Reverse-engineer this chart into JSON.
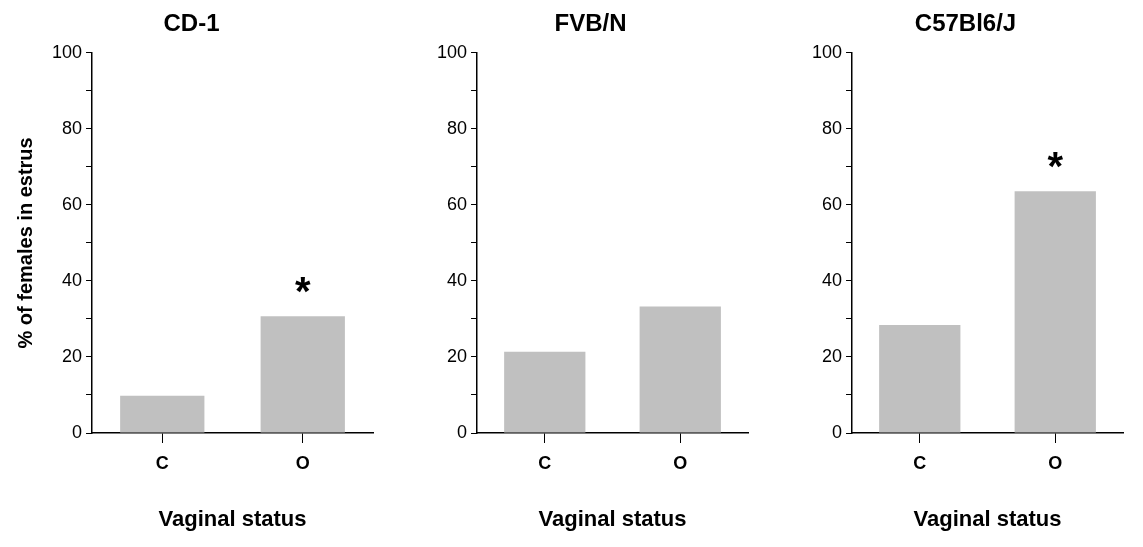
{
  "chart_data": [
    {
      "type": "bar",
      "title": "CD-1",
      "xlabel": "Vaginal status",
      "ylabel": "% of females in estrus",
      "categories": [
        "C",
        "O"
      ],
      "values": [
        9.8,
        30.7
      ],
      "color": "#c0c0c0",
      "ylim": [
        0,
        100
      ],
      "yticks": [
        0,
        {
          "value": 10,
          "label": null
        },
        20,
        {
          "value": 30,
          "label": null
        },
        40,
        {
          "value": 50,
          "label": null
        },
        60,
        {
          "value": 70,
          "label": null
        },
        80,
        {
          "value": 90,
          "label": null
        },
        100
      ],
      "annotations": [
        "*"
      ]
    },
    {
      "type": "bar",
      "title": "FVB/N",
      "xlabel": "Vaginal status",
      "categories": [
        "C",
        "O"
      ],
      "values": [
        21.4,
        33.3
      ],
      "color": "#c0c0c0",
      "ylim": [
        0,
        100
      ],
      "yticks": [
        0,
        {
          "value": 10,
          "label": null
        },
        20,
        {
          "value": 30,
          "label": null
        },
        40,
        {
          "value": 50,
          "label": null
        },
        60,
        {
          "value": 70,
          "label": null
        },
        80,
        {
          "value": 90,
          "label": null
        },
        100
      ]
    },
    {
      "type": "bar",
      "title": "C57Bl6/J",
      "xlabel": "Vaginal status",
      "categories": [
        "C",
        "O"
      ],
      "values": [
        28.4,
        63.6
      ],
      "color": "#c0c0c0",
      "ylim": [
        0,
        100
      ],
      "yticks": [
        0,
        {
          "value": 10,
          "label": null
        },
        20,
        {
          "value": 30,
          "label": null
        },
        40,
        {
          "value": 50,
          "label": null
        },
        60,
        {
          "value": 70,
          "label": null
        },
        80,
        {
          "value": 90,
          "label": null
        },
        100
      ],
      "annotations": [
        "*"
      ]
    }
  ]
}
